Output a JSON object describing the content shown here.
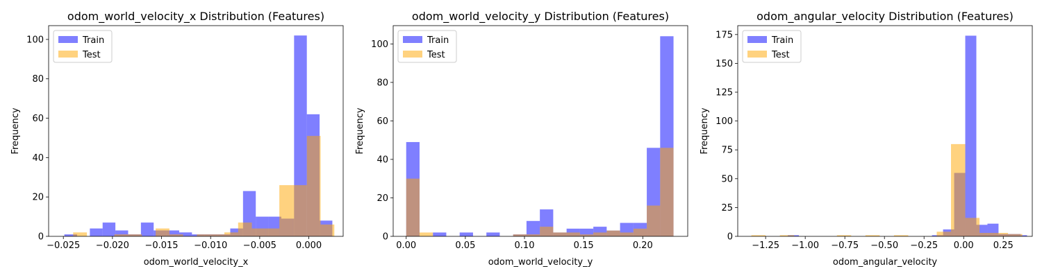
{
  "colors": {
    "train": "#0000ff",
    "test": "#ffa500",
    "axes": "#000000"
  },
  "chart_data": [
    {
      "type": "bar",
      "title": "odom_world_velocity_x Distribution (Features)",
      "xlabel": "odom_world_velocity_x",
      "ylabel": "Frequency",
      "xlim": [
        -0.0265,
        0.0035
      ],
      "ylim": [
        0,
        107
      ],
      "xticks": [
        -0.025,
        -0.02,
        -0.015,
        -0.01,
        -0.005,
        0.0
      ],
      "xtick_labels": [
        "−0.025",
        "−0.020",
        "−0.015",
        "−0.010",
        "−0.005",
        "0.000"
      ],
      "yticks": [
        0,
        20,
        40,
        60,
        80,
        100
      ],
      "ytick_labels": [
        "0",
        "20",
        "40",
        "60",
        "80",
        "100"
      ],
      "legend": {
        "position": "top-left",
        "entries": [
          "Train",
          "Test"
        ]
      },
      "series": [
        {
          "name": "Train",
          "color": "#0000ff",
          "alpha": 0.5,
          "bins": [
            [
              -0.0249,
              -0.0236,
              1
            ],
            [
              -0.0223,
              -0.021,
              4
            ],
            [
              -0.021,
              -0.0197,
              7
            ],
            [
              -0.0197,
              -0.0184,
              3
            ],
            [
              -0.0184,
              -0.0171,
              1
            ],
            [
              -0.0171,
              -0.0158,
              7
            ],
            [
              -0.0158,
              -0.0145,
              3
            ],
            [
              -0.0145,
              -0.0132,
              3
            ],
            [
              -0.0132,
              -0.0119,
              2
            ],
            [
              -0.0119,
              -0.0106,
              1
            ],
            [
              -0.0106,
              -0.0093,
              1
            ],
            [
              -0.0093,
              -0.008,
              1
            ],
            [
              -0.008,
              -0.0067,
              4
            ],
            [
              -0.0067,
              -0.0054,
              23
            ],
            [
              -0.0054,
              -0.0041,
              10
            ],
            [
              -0.0041,
              -0.0028,
              10
            ],
            [
              -0.0028,
              -0.0015,
              9
            ],
            [
              -0.0015,
              -0.0002,
              102
            ],
            [
              -0.0002,
              0.0011,
              62
            ],
            [
              0.0011,
              0.0024,
              8
            ]
          ]
        },
        {
          "name": "Test",
          "color": "#ffa500",
          "alpha": 0.5,
          "bins": [
            [
              -0.024,
              -0.0226,
              2
            ],
            [
              -0.0198,
              -0.0184,
              1
            ],
            [
              -0.0184,
              -0.017,
              1
            ],
            [
              -0.0156,
              -0.0142,
              4
            ],
            [
              -0.0142,
              -0.0128,
              1
            ],
            [
              -0.0114,
              -0.01,
              1
            ],
            [
              -0.01,
              -0.0086,
              1
            ],
            [
              -0.0086,
              -0.0072,
              2
            ],
            [
              -0.0072,
              -0.0058,
              7
            ],
            [
              -0.0058,
              -0.0044,
              4
            ],
            [
              -0.0044,
              -0.003,
              4
            ],
            [
              -0.003,
              -0.0016,
              26
            ],
            [
              -0.0016,
              -0.0002,
              26
            ],
            [
              -0.0002,
              0.0012,
              51
            ],
            [
              0.0012,
              0.0026,
              6
            ]
          ]
        }
      ]
    },
    {
      "type": "bar",
      "title": "odom_world_velocity_y Distribution (Features)",
      "xlabel": "odom_world_velocity_y",
      "ylabel": "Frequency",
      "xlim": [
        -0.011,
        0.238
      ],
      "ylim": [
        0,
        109.5
      ],
      "xticks": [
        0.0,
        0.05,
        0.1,
        0.15,
        0.2
      ],
      "xtick_labels": [
        "0.00",
        "0.05",
        "0.10",
        "0.15",
        "0.20"
      ],
      "yticks": [
        0,
        20,
        40,
        60,
        80,
        100
      ],
      "ytick_labels": [
        "0",
        "20",
        "40",
        "60",
        "80",
        "100"
      ],
      "legend": {
        "position": "top-left",
        "entries": [
          "Train",
          "Test"
        ]
      },
      "series": [
        {
          "name": "Train",
          "color": "#0000ff",
          "alpha": 0.5,
          "bins": [
            [
              0.0,
              0.0113,
              49
            ],
            [
              0.0226,
              0.0339,
              2
            ],
            [
              0.0452,
              0.0565,
              2
            ],
            [
              0.0678,
              0.0791,
              2
            ],
            [
              0.0904,
              0.1017,
              1
            ],
            [
              0.1017,
              0.113,
              8
            ],
            [
              0.113,
              0.1243,
              14
            ],
            [
              0.1243,
              0.1356,
              2
            ],
            [
              0.1356,
              0.1469,
              4
            ],
            [
              0.1469,
              0.1582,
              4
            ],
            [
              0.1582,
              0.1695,
              5
            ],
            [
              0.1695,
              0.1808,
              3
            ],
            [
              0.1808,
              0.1921,
              7
            ],
            [
              0.1921,
              0.2034,
              7
            ],
            [
              0.2034,
              0.2147,
              46
            ],
            [
              0.2147,
              0.226,
              104
            ]
          ]
        },
        {
          "name": "Test",
          "color": "#ffa500",
          "alpha": 0.5,
          "bins": [
            [
              0.0,
              0.0113,
              30
            ],
            [
              0.0113,
              0.0226,
              2
            ],
            [
              0.0904,
              0.1017,
              1
            ],
            [
              0.1017,
              0.113,
              1
            ],
            [
              0.113,
              0.1243,
              5
            ],
            [
              0.1243,
              0.1356,
              2
            ],
            [
              0.1356,
              0.1469,
              2
            ],
            [
              0.1469,
              0.1582,
              1
            ],
            [
              0.1582,
              0.1695,
              2
            ],
            [
              0.1695,
              0.1808,
              3
            ],
            [
              0.1808,
              0.1921,
              2
            ],
            [
              0.1921,
              0.2034,
              4
            ],
            [
              0.2034,
              0.2147,
              16
            ],
            [
              0.2147,
              0.226,
              46
            ]
          ]
        }
      ]
    },
    {
      "type": "bar",
      "title": "odom_angular_velocity Distribution (Features)",
      "xlabel": "odom_angular_velocity",
      "ylabel": "Frequency",
      "xlim": [
        -1.426,
        0.433
      ],
      "ylim": [
        0,
        182.7
      ],
      "xticks": [
        -1.25,
        -1.0,
        -0.75,
        -0.5,
        -0.25,
        0.0,
        0.25
      ],
      "xtick_labels": [
        "−1.25",
        "−1.00",
        "−0.75",
        "−0.50",
        "−0.25",
        "0.00",
        "0.25"
      ],
      "yticks": [
        0,
        25,
        50,
        75,
        100,
        125,
        150,
        175
      ],
      "ytick_labels": [
        "0",
        "25",
        "50",
        "75",
        "100",
        "125",
        "150",
        "175"
      ],
      "legend": {
        "position": "top-left",
        "entries": [
          "Train",
          "Test"
        ]
      },
      "series": [
        {
          "name": "Train",
          "color": "#0000ff",
          "alpha": 0.5,
          "bins": [
            [
              -1.11,
              -1.04,
              1
            ],
            [
              -0.2,
              -0.13,
              1
            ],
            [
              -0.13,
              -0.06,
              6
            ],
            [
              -0.06,
              0.01,
              55
            ],
            [
              0.01,
              0.08,
              174
            ],
            [
              0.08,
              0.15,
              10
            ],
            [
              0.15,
              0.22,
              11
            ],
            [
              0.22,
              0.29,
              2
            ],
            [
              0.29,
              0.36,
              2
            ],
            [
              0.36,
              0.4,
              1
            ]
          ]
        },
        {
          "name": "Test",
          "color": "#ffa500",
          "alpha": 0.5,
          "bins": [
            [
              -1.34,
              -1.25,
              1
            ],
            [
              -1.16,
              -1.07,
              1
            ],
            [
              -0.8,
              -0.71,
              1
            ],
            [
              -0.62,
              -0.53,
              1
            ],
            [
              -0.44,
              -0.35,
              1
            ],
            [
              -0.17,
              -0.08,
              4
            ],
            [
              -0.08,
              0.01,
              80
            ],
            [
              0.01,
              0.1,
              16
            ],
            [
              0.1,
              0.19,
              3
            ],
            [
              0.19,
              0.28,
              3
            ],
            [
              0.28,
              0.37,
              2
            ]
          ]
        }
      ]
    }
  ]
}
